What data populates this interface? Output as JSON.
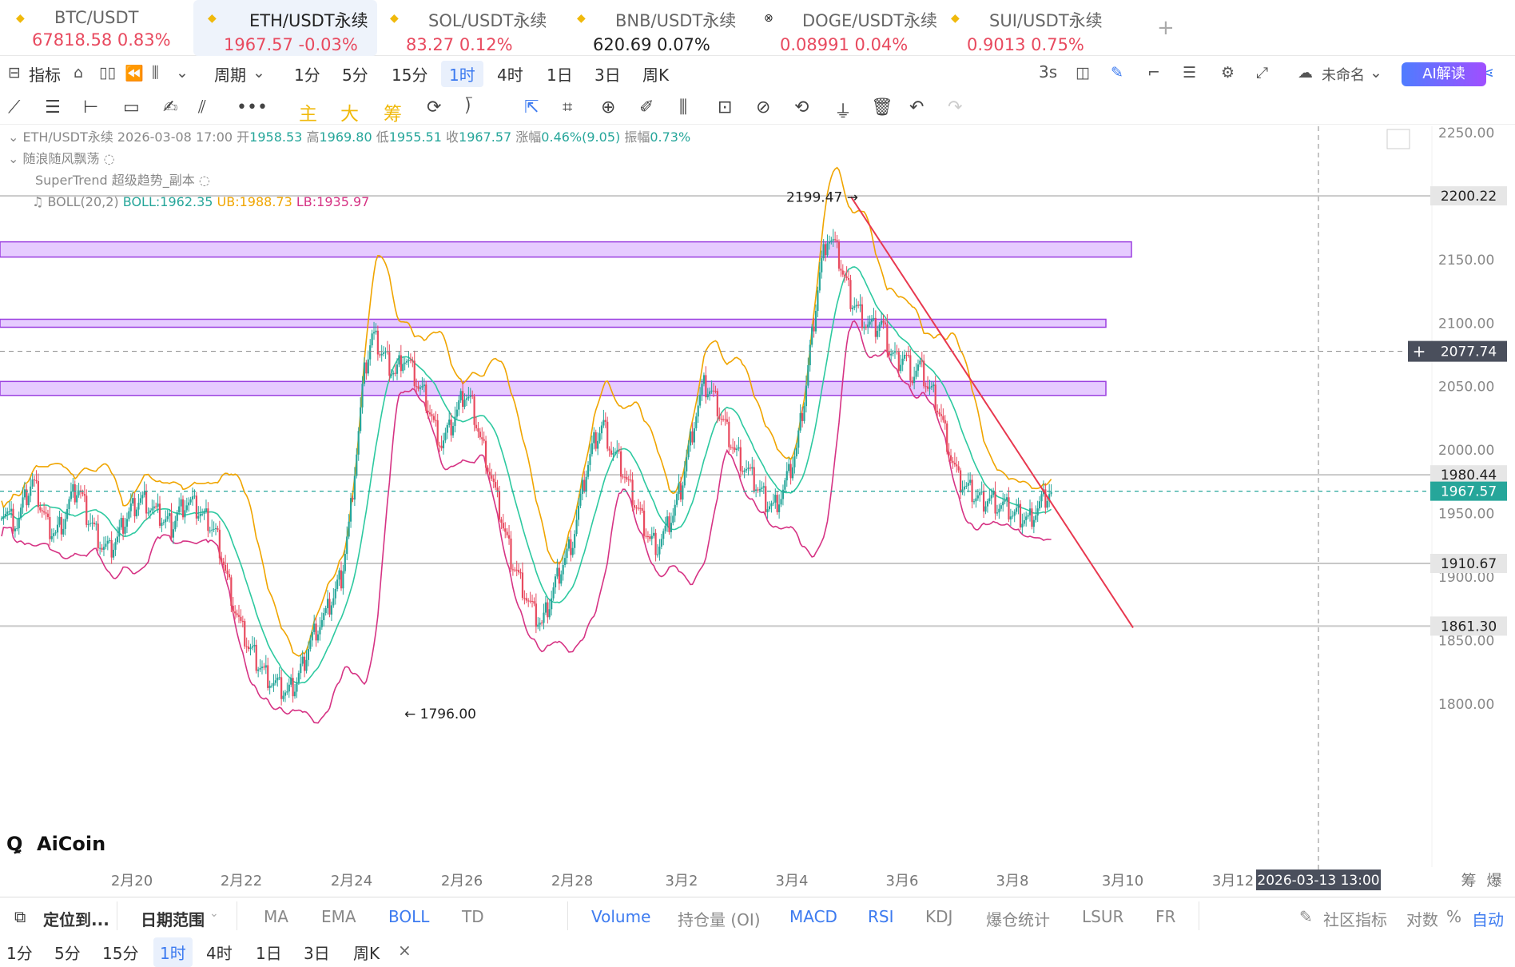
{
  "tabs": [
    {
      "pair": "BTC/USDT",
      "price": "67818.58",
      "change": "0.83%",
      "color": "#e84a5f",
      "icon": "bnb-icon"
    },
    {
      "pair": "ETH/USDT永续",
      "price": "1967.57",
      "change": "-0.03%",
      "color": "#e84a5f",
      "icon": "bnb-icon"
    },
    {
      "pair": "SOL/USDT永续",
      "price": "83.27",
      "change": "0.12%",
      "color": "#e84a5f",
      "icon": "bnb-icon"
    },
    {
      "pair": "BNB/USDT永续",
      "price": "620.69",
      "change": "0.07%",
      "color": "#222222",
      "icon": "bnb-icon"
    },
    {
      "pair": "DOGE/USDT永续",
      "price": "0.08991",
      "change": "0.04%",
      "color": "#e84a5f",
      "icon": "exchange-icon"
    },
    {
      "pair": "SUI/USDT永续",
      "price": "0.9013",
      "change": "0.75%",
      "color": "#e84a5f",
      "icon": "bnb-icon"
    }
  ],
  "toolbar": {
    "indicators": "指标",
    "period": "周期",
    "intervals": [
      "1分",
      "5分",
      "15分",
      "1时",
      "4时",
      "1日",
      "3日",
      "周K"
    ],
    "selected_interval": "1时",
    "refresh": "3s",
    "layout_name": "未命名",
    "ai_label": "AI解读"
  },
  "draw_toolbar": {
    "main": "主",
    "big": "大",
    "chip": "筹"
  },
  "legend": {
    "symbol": "ETH/USDT永续",
    "datetime": "2026-03-08 17:00",
    "open_label": "开",
    "open": "1958.53",
    "high_label": "高",
    "high": "1969.80",
    "low_label": "低",
    "low": "1955.51",
    "close_label": "收",
    "close": "1967.57",
    "chg_label": "涨幅",
    "chg": "0.46%(9.05)",
    "amp_label": "振幅",
    "amp": "0.73%",
    "ind1": "随浪随风飘荡",
    "ind2": "SuperTrend 超级趋势_副本",
    "boll_name": "BOLL(20,2)",
    "boll": "BOLL:1962.35",
    "ub": "UB:1988.73",
    "lb": "LB:1935.97"
  },
  "chart_data": {
    "type": "candlestick",
    "symbol": "ETH/USDT永续",
    "y_ticks": [
      2250,
      2200,
      2150,
      2100,
      2050,
      2000,
      1950,
      1900,
      1850,
      1800
    ],
    "ylim": [
      1780,
      2262
    ],
    "x_ticks": [
      "2月20",
      "2月22",
      "2月24",
      "2月26",
      "2月28",
      "3月2",
      "3月4",
      "3月6",
      "3月8",
      "3月10",
      "3月12"
    ],
    "price_lines": [
      {
        "value": 2200.22,
        "label": "2200.22"
      },
      {
        "value": 1980.44,
        "label": "1980.44"
      },
      {
        "value": 1910.67,
        "label": "1910.67"
      },
      {
        "value": 1861.3,
        "label": "1861.30"
      }
    ],
    "current_price": {
      "value": 1967.57,
      "label": "1967.57"
    },
    "crosshair": {
      "value": 2077.74,
      "label": "2077.74",
      "time": "2026-03-13 13:00"
    },
    "zones": [
      [
        2152,
        2164
      ],
      [
        2098,
        2103
      ],
      [
        2043,
        2054
      ]
    ],
    "annotations": [
      {
        "text": "2199.47"
      },
      {
        "text": "1796.00"
      }
    ],
    "watermark": "AiCoin",
    "right_corner": [
      "筹",
      "爆"
    ],
    "close_path": [
      1955,
      1948,
      1942,
      1960,
      1975,
      1958,
      1940,
      1935,
      1945,
      1962,
      1970,
      1950,
      1938,
      1925,
      1920,
      1930,
      1945,
      1955,
      1962,
      1958,
      1950,
      1945,
      1940,
      1952,
      1960,
      1955,
      1948,
      1942,
      1930,
      1905,
      1880,
      1860,
      1845,
      1835,
      1825,
      1818,
      1812,
      1808,
      1815,
      1830,
      1850,
      1862,
      1870,
      1885,
      1900,
      1940,
      2000,
      2060,
      2090,
      2080,
      2070,
      2060,
      2075,
      2065,
      2050,
      2040,
      2020,
      2005,
      2015,
      2030,
      2045,
      2035,
      2010,
      1990,
      1965,
      1940,
      1915,
      1900,
      1885,
      1870,
      1862,
      1880,
      1900,
      1915,
      1930,
      1960,
      1990,
      2010,
      2020,
      2000,
      1990,
      1975,
      1960,
      1945,
      1930,
      1925,
      1935,
      1950,
      1970,
      2000,
      2030,
      2050,
      2045,
      2030,
      2015,
      2000,
      1990,
      1980,
      1970,
      1960,
      1955,
      1965,
      1980,
      2000,
      2040,
      2090,
      2140,
      2170,
      2160,
      2140,
      2120,
      2110,
      2100,
      2095,
      2100,
      2080,
      2070,
      2075,
      2060,
      2065,
      2050,
      2040,
      2020,
      1995,
      1975,
      1970,
      1965,
      1960,
      1962,
      1958,
      1955,
      1950,
      1948,
      1945,
      1952,
      1960,
      1967
    ]
  },
  "bottom": {
    "locate": "定位到...",
    "range": "日期范围",
    "main_inds": [
      "MA",
      "EMA",
      "BOLL",
      "TD"
    ],
    "sub_inds": [
      "Volume",
      "持仓量 (OI)",
      "MACD",
      "RSI",
      "KDJ",
      "爆仓统计",
      "LSUR",
      "FR"
    ],
    "community": "社区指标",
    "scale": [
      "对数",
      "%",
      "自动"
    ],
    "intervals": [
      "1分",
      "5分",
      "15分",
      "1时",
      "4时",
      "1日",
      "3日",
      "周K"
    ],
    "close": "×"
  }
}
